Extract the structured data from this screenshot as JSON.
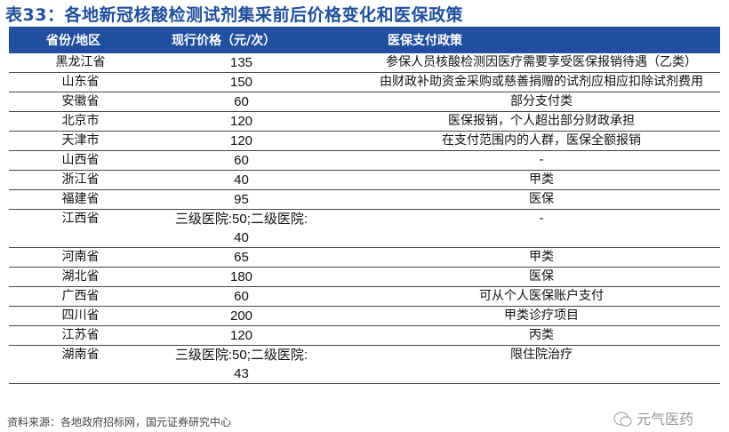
{
  "title": "表33：各地新冠核酸检测试剂集采前后价格变化和医保政策",
  "table": {
    "headers": [
      "省份/地区",
      "现行价格（元/次）",
      "医保支付政策"
    ],
    "rows": [
      {
        "province": "黑龙江省",
        "price": "135",
        "policy": "参保人员核酸检测因医疗需要享受医保报销待遇（乙类）"
      },
      {
        "province": "山东省",
        "price": "150",
        "policy": "由财政补助资金采购或慈善捐赠的试剂应相应扣除试剂费用"
      },
      {
        "province": "安徽省",
        "price": "60",
        "policy": "部分支付类"
      },
      {
        "province": "北京市",
        "price": "120",
        "policy": "医保报销，个人超出部分财政承担"
      },
      {
        "province": "天津市",
        "price": "120",
        "policy": "在支付范围内的人群，医保全额报销"
      },
      {
        "province": "山西省",
        "price": "60",
        "policy": "-"
      },
      {
        "province": "浙江省",
        "price": "40",
        "policy": "甲类"
      },
      {
        "province": "福建省",
        "price": "95",
        "policy": "医保"
      },
      {
        "province": "江西省",
        "price": "三级医院:50;二级医院:40",
        "policy": "-"
      },
      {
        "province": "河南省",
        "price": "65",
        "policy": "甲类"
      },
      {
        "province": "湖北省",
        "price": "180",
        "policy": "医保"
      },
      {
        "province": "广西省",
        "price": "60",
        "policy": "可从个人医保账户支付"
      },
      {
        "province": "四川省",
        "price": "200",
        "policy": "甲类诊疗项目"
      },
      {
        "province": "江苏省",
        "price": "120",
        "policy": "丙类"
      },
      {
        "province": "湖南省",
        "price": "三级医院:50;二级医院:43",
        "policy": "限住院治疗"
      }
    ]
  },
  "source": "资料来源：各地政府招标网，国元证券研究中心",
  "watermark": "元气医药",
  "colors": {
    "header_bg": "#1f4f9d",
    "title": "#1f4e9c"
  }
}
